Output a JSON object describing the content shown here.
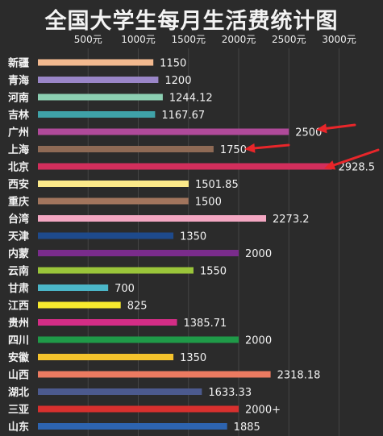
{
  "chart_data": {
    "type": "bar",
    "orientation": "horizontal",
    "title": "全国大学生每月生活费统计图",
    "xlabel": "",
    "ylabel": "",
    "xlim": [
      0,
      3200
    ],
    "grid": true,
    "ticks": [
      {
        "value": 500,
        "label": "500元"
      },
      {
        "value": 1000,
        "label": "1000元"
      },
      {
        "value": 1500,
        "label": "1500元"
      },
      {
        "value": 2000,
        "label": "2000元"
      },
      {
        "value": 2500,
        "label": "2500元"
      },
      {
        "value": 3000,
        "label": "3000元"
      }
    ],
    "bars": [
      {
        "category": "新疆",
        "value": 1150,
        "label": "1150",
        "color": "#f2b98f"
      },
      {
        "category": "青海",
        "value": 1200,
        "label": "1200",
        "color": "#9a86c8"
      },
      {
        "category": "河南",
        "value": 1244.12,
        "label": "1244.12",
        "color": "#8ccfb2"
      },
      {
        "category": "吉林",
        "value": 1167.67,
        "label": "1167.67",
        "color": "#3fa2a8"
      },
      {
        "category": "广州",
        "value": 2500,
        "label": "2500",
        "color": "#b04a9a"
      },
      {
        "category": "上海",
        "value": 1750,
        "label": "1750",
        "color": "#8e6a55"
      },
      {
        "category": "北京",
        "value": 2928.5,
        "label": "2928.5",
        "color": "#d22e5c"
      },
      {
        "category": "西安",
        "value": 1501.85,
        "label": "1501.85",
        "color": "#fbe98a"
      },
      {
        "category": "重庆",
        "value": 1500,
        "label": "1500",
        "color": "#a2755d"
      },
      {
        "category": "台湾",
        "value": 2273.2,
        "label": "2273.2",
        "color": "#f3a7c2"
      },
      {
        "category": "天津",
        "value": 1350,
        "label": "1350",
        "color": "#1e4a8c"
      },
      {
        "category": "内蒙",
        "value": 2000,
        "label": "2000",
        "color": "#7a2c8c"
      },
      {
        "category": "云南",
        "value": 1550,
        "label": "1550",
        "color": "#9ac53a"
      },
      {
        "category": "甘肃",
        "value": 700,
        "label": "700",
        "color": "#4bb6c8"
      },
      {
        "category": "江西",
        "value": 825,
        "label": "825",
        "color": "#f7ea2e"
      },
      {
        "category": "贵州",
        "value": 1385.71,
        "label": "1385.71",
        "color": "#d42d86"
      },
      {
        "category": "四川",
        "value": 2000,
        "label": "2000",
        "color": "#1f9a48"
      },
      {
        "category": "安徽",
        "value": 1350,
        "label": "1350",
        "color": "#f5c32c"
      },
      {
        "category": "山西",
        "value": 2318.18,
        "label": "2318.18",
        "color": "#ec7b61"
      },
      {
        "category": "湖北",
        "value": 1633.33,
        "label": "1633.33",
        "color": "#4c5a8e"
      },
      {
        "category": "三亚",
        "value": 2000,
        "label": "2000+",
        "color": "#d8302e"
      },
      {
        "category": "山东",
        "value": 1885,
        "label": "1885",
        "color": "#2d64b0"
      }
    ],
    "annotations": [
      {
        "type": "red-arrow",
        "target": "广州"
      },
      {
        "type": "red-arrow",
        "target": "上海"
      },
      {
        "type": "red-arrow",
        "target": "北京"
      }
    ],
    "colors": {
      "background": "#2b2b2b",
      "text": "#f2f2f2",
      "grid": "#444444",
      "arrow": "#e8262a"
    }
  }
}
